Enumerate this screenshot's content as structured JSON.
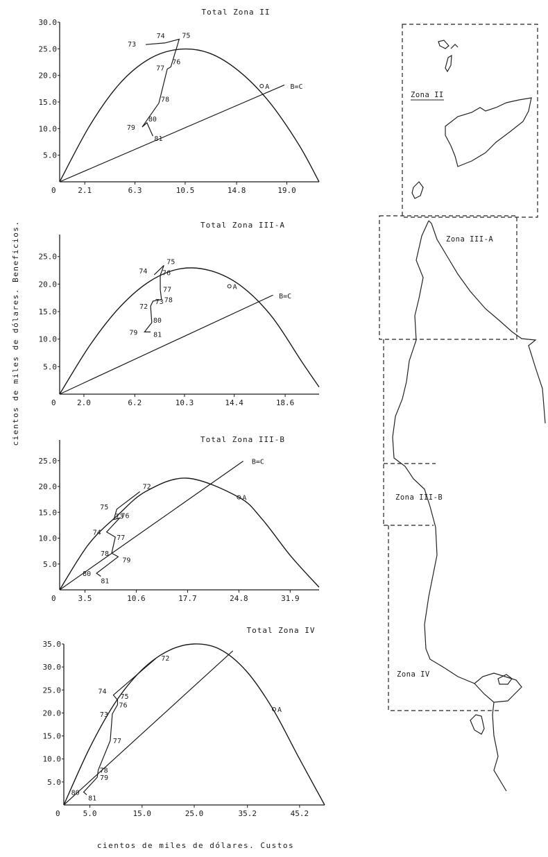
{
  "figure": {
    "xlabel": "cientos de miles de dólares. Custos",
    "ylabel": "cientos de miles de dólares. Beneficios."
  },
  "map": {
    "zones": [
      {
        "id": "zona-ii",
        "label": "Zona II"
      },
      {
        "id": "zona-iii-a",
        "label": "Zona III-A"
      },
      {
        "id": "zona-iii-b",
        "label": "Zona III-B"
      },
      {
        "id": "zona-iv",
        "label": "Zona IV"
      }
    ]
  },
  "chart_data": [
    {
      "type": "line",
      "title": "Total Zona II",
      "x_ticks": [
        "2.1",
        "6.3",
        "10.5",
        "14.8",
        "19.0"
      ],
      "y_ticks": [
        "5.0",
        "10.0",
        "15.0",
        "20.0",
        "25.0",
        "30.0"
      ],
      "xlim": [
        0,
        21.7
      ],
      "ylim": [
        0,
        30
      ],
      "series": [
        {
          "kind": "curve",
          "points": [
            [
              0,
              0
            ],
            [
              2.5,
              10.5
            ],
            [
              5,
              18.4
            ],
            [
              7.5,
              23.1
            ],
            [
              10,
              24.9
            ],
            [
              12.5,
              24.2
            ],
            [
              15,
              20.8
            ],
            [
              17.5,
              15.1
            ],
            [
              20,
              7.0
            ],
            [
              21.7,
              0
            ]
          ]
        },
        {
          "name": "B=C",
          "kind": "line",
          "points": [
            [
              0,
              0
            ],
            [
              18.8,
              18.2
            ]
          ]
        },
        {
          "kind": "path",
          "labels": [
            "73",
            "74",
            "75",
            "76",
            "77",
            "78",
            "79",
            "80",
            "81"
          ],
          "points": [
            [
              7.2,
              25.8
            ],
            [
              8.8,
              26.1
            ],
            [
              10.0,
              26.8
            ],
            [
              9.3,
              21.6
            ],
            [
              9.0,
              21.2
            ],
            [
              8.3,
              14.8
            ],
            [
              6.9,
              10.3
            ],
            [
              7.3,
              11.1
            ],
            [
              7.8,
              8.6
            ]
          ]
        }
      ],
      "annotations": [
        {
          "label": "A",
          "x": 16.9,
          "y": 18.0
        },
        {
          "label": "B=C",
          "x": 19.0,
          "y": 18.0
        }
      ]
    },
    {
      "type": "line",
      "title": "Total Zona III-A",
      "x_ticks": [
        "2.0",
        "6.2",
        "10.3",
        "14.4",
        "18.6"
      ],
      "y_ticks": [
        "5.0",
        "10.0",
        "15.0",
        "20.0",
        "25.0"
      ],
      "xlim": [
        0,
        21.4
      ],
      "ylim": [
        0,
        29
      ],
      "series": [
        {
          "kind": "curve",
          "points": [
            [
              0,
              0
            ],
            [
              2.5,
              8.9
            ],
            [
              5,
              15.9
            ],
            [
              7.5,
              20.6
            ],
            [
              10,
              22.8
            ],
            [
              12.5,
              22.4
            ],
            [
              15,
              19.6
            ],
            [
              17.5,
              14.1
            ],
            [
              20,
              5.8
            ],
            [
              21.4,
              1.3
            ]
          ]
        },
        {
          "name": "B=C",
          "kind": "line",
          "points": [
            [
              0,
              0
            ],
            [
              17.6,
              18.0
            ]
          ]
        },
        {
          "kind": "path",
          "labels": [
            "74",
            "75",
            "76",
            "77",
            "78",
            "73",
            "72",
            "80",
            "79",
            "81"
          ],
          "points": [
            [
              7.8,
              21.7
            ],
            [
              8.6,
              23.4
            ],
            [
              8.3,
              21.6
            ],
            [
              8.3,
              19.0
            ],
            [
              8.4,
              17.2
            ],
            [
              7.7,
              16.9
            ],
            [
              7.5,
              16.0
            ],
            [
              7.6,
              13.0
            ],
            [
              7.0,
              11.3
            ],
            [
              7.5,
              11.3
            ]
          ]
        }
      ],
      "annotations": [
        {
          "label": "A",
          "x": 14.0,
          "y": 19.6
        },
        {
          "label": "B=C",
          "x": 17.8,
          "y": 17.9
        }
      ]
    },
    {
      "type": "line",
      "title": "Total Zona III-B",
      "x_ticks": [
        "3.5",
        "10.6",
        "17.7",
        "24.8",
        "31.9"
      ],
      "y_ticks": [
        "5.0",
        "10.0",
        "15.0",
        "20.0",
        "25.0"
      ],
      "xlim": [
        0,
        35.9
      ],
      "ylim": [
        0,
        29
      ],
      "series": [
        {
          "kind": "curve",
          "points": [
            [
              0,
              0
            ],
            [
              4,
              8.8
            ],
            [
              8,
              14.4
            ],
            [
              12,
              19.1
            ],
            [
              17.7,
              21.6
            ],
            [
              24.8,
              17.9
            ],
            [
              28,
              13.7
            ],
            [
              32,
              6.5
            ],
            [
              35.9,
              0.5
            ]
          ]
        },
        {
          "name": "B=C",
          "kind": "line",
          "points": [
            [
              0,
              0
            ],
            [
              25.4,
              24.9
            ]
          ]
        },
        {
          "kind": "path",
          "labels": [
            "72",
            "75",
            "73",
            "76",
            "74",
            "77",
            "78",
            "79",
            "80",
            "81"
          ],
          "points": [
            [
              11.1,
              19.0
            ],
            [
              7.9,
              15.6
            ],
            [
              7.5,
              13.6
            ],
            [
              8.3,
              13.9
            ],
            [
              6.5,
              11.2
            ],
            [
              7.7,
              10.2
            ],
            [
              7.2,
              7.1
            ],
            [
              8.1,
              6.4
            ],
            [
              5.1,
              3.2
            ],
            [
              5.7,
              2.6
            ]
          ]
        }
      ],
      "annotations": [
        {
          "label": "A",
          "x": 24.8,
          "y": 17.9
        },
        {
          "label": "B=C",
          "x": 26.1,
          "y": 24.9
        }
      ]
    },
    {
      "type": "line",
      "title": "Total Zona IV",
      "x_ticks": [
        "5.0",
        "15.0",
        "25.0",
        "35.2",
        "45.2"
      ],
      "y_ticks": [
        "5.0",
        "10.0",
        "15.0",
        "20.0",
        "25.0",
        "30.0",
        "35.0"
      ],
      "xlim": [
        0,
        50
      ],
      "ylim": [
        0,
        35
      ],
      "series": [
        {
          "kind": "curve",
          "points": [
            [
              0,
              0
            ],
            [
              5,
              12.5
            ],
            [
              10,
              22.5
            ],
            [
              15,
              29.4
            ],
            [
              20,
              33.5
            ],
            [
              25,
              35.0
            ],
            [
              30,
              33.8
            ],
            [
              35,
              29.1
            ],
            [
              40,
              21.0
            ],
            [
              45,
              10.4
            ],
            [
              50,
              0
            ]
          ]
        },
        {
          "name": "",
          "kind": "line",
          "points": [
            [
              0,
              0
            ],
            [
              32.4,
              33.5
            ]
          ]
        },
        {
          "kind": "path",
          "labels": [
            "72",
            "74",
            "75",
            "76",
            "73",
            "77",
            "78",
            "79",
            "80",
            "81"
          ],
          "points": [
            [
              17.6,
              31.8
            ],
            [
              9.5,
              23.9
            ],
            [
              10.3,
              22.8
            ],
            [
              10.3,
              21.8
            ],
            [
              9.3,
              19.8
            ],
            [
              8.9,
              14.0
            ],
            [
              6.6,
              7.6
            ],
            [
              6.4,
              6.0
            ],
            [
              3.8,
              2.8
            ],
            [
              4.4,
              2.2
            ]
          ]
        }
      ],
      "annotations": [
        {
          "label": "A",
          "x": 40.3,
          "y": 20.8
        }
      ]
    }
  ]
}
